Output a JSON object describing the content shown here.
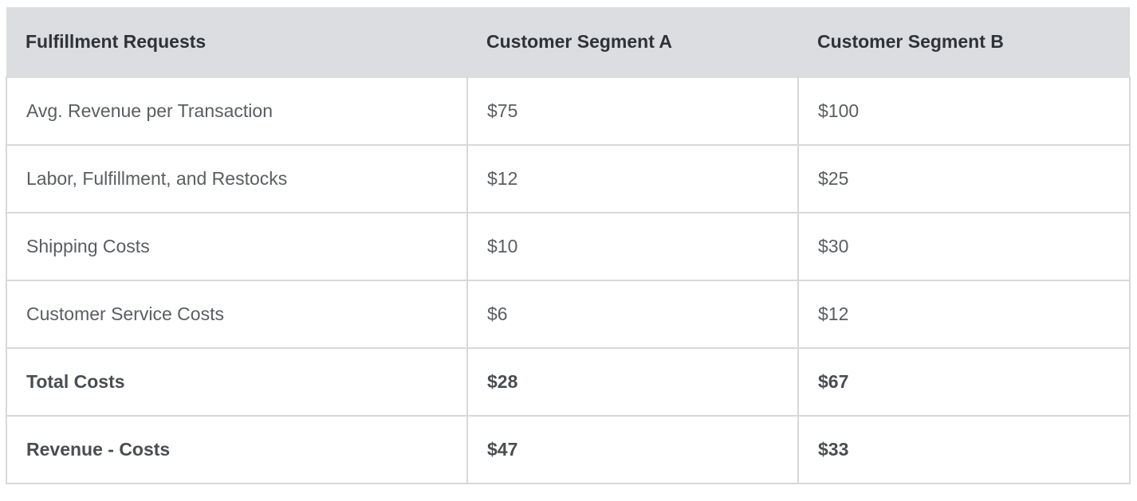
{
  "table": {
    "headers": [
      "Fulfillment Requests",
      "Customer Segment A",
      "Customer Segment B"
    ],
    "rows": [
      {
        "label": "Avg. Revenue per Transaction",
        "a": "$75",
        "b": "$100",
        "bold": false
      },
      {
        "label": "Labor, Fulfillment, and Restocks",
        "a": "$12",
        "b": "$25",
        "bold": false
      },
      {
        "label": "Shipping Costs",
        "a": "$10",
        "b": "$30",
        "bold": false
      },
      {
        "label": "Customer Service Costs",
        "a": "$6",
        "b": "$12",
        "bold": false
      },
      {
        "label": "Total Costs",
        "a": "$28",
        "b": "$67",
        "bold": true
      },
      {
        "label": "Revenue - Costs",
        "a": "$47",
        "b": "$33",
        "bold": true
      }
    ]
  },
  "colors": {
    "header_bg": "#dcdde1",
    "border": "#d8d8d8"
  }
}
